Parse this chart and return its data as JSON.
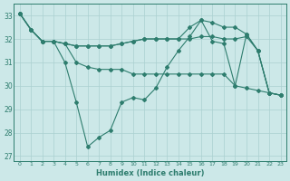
{
  "xlabel": "Humidex (Indice chaleur)",
  "x": [
    0,
    1,
    2,
    3,
    4,
    5,
    6,
    7,
    8,
    9,
    10,
    11,
    12,
    13,
    14,
    15,
    16,
    17,
    18,
    19,
    20,
    21,
    22,
    23
  ],
  "line1": [
    33.1,
    32.4,
    31.9,
    31.9,
    31.0,
    29.3,
    27.4,
    27.8,
    28.1,
    29.3,
    29.5,
    29.4,
    29.9,
    30.8,
    31.5,
    32.1,
    32.8,
    31.9,
    31.8,
    30.0,
    32.2,
    31.5,
    29.7,
    29.6
  ],
  "line2": [
    33.1,
    32.4,
    31.9,
    31.9,
    31.8,
    31.7,
    31.7,
    31.7,
    31.7,
    31.8,
    31.9,
    32.0,
    32.0,
    32.0,
    32.0,
    32.0,
    32.1,
    32.1,
    32.0,
    32.0,
    32.1,
    31.5,
    29.7,
    29.6
  ],
  "line3": [
    33.1,
    32.4,
    31.9,
    31.9,
    31.8,
    31.7,
    31.7,
    31.7,
    31.7,
    31.8,
    31.9,
    32.0,
    32.0,
    32.0,
    32.0,
    32.5,
    32.8,
    32.7,
    32.5,
    32.5,
    32.2,
    31.5,
    29.7,
    29.6
  ],
  "line_flat": [
    33.1,
    32.4,
    31.9,
    31.9,
    31.8,
    31.0,
    30.8,
    30.7,
    30.7,
    30.7,
    30.5,
    30.5,
    30.5,
    30.5,
    30.5,
    30.5,
    30.5,
    30.5,
    30.5,
    30.0,
    29.9,
    29.8,
    29.7,
    29.6
  ],
  "color": "#2e7d6e",
  "bg_color": "#cce8e8",
  "grid_color": "#aad0d0",
  "ylim": [
    26.8,
    33.5
  ],
  "yticks": [
    27,
    28,
    29,
    30,
    31,
    32,
    33
  ],
  "xlim": [
    -0.5,
    23.5
  ]
}
